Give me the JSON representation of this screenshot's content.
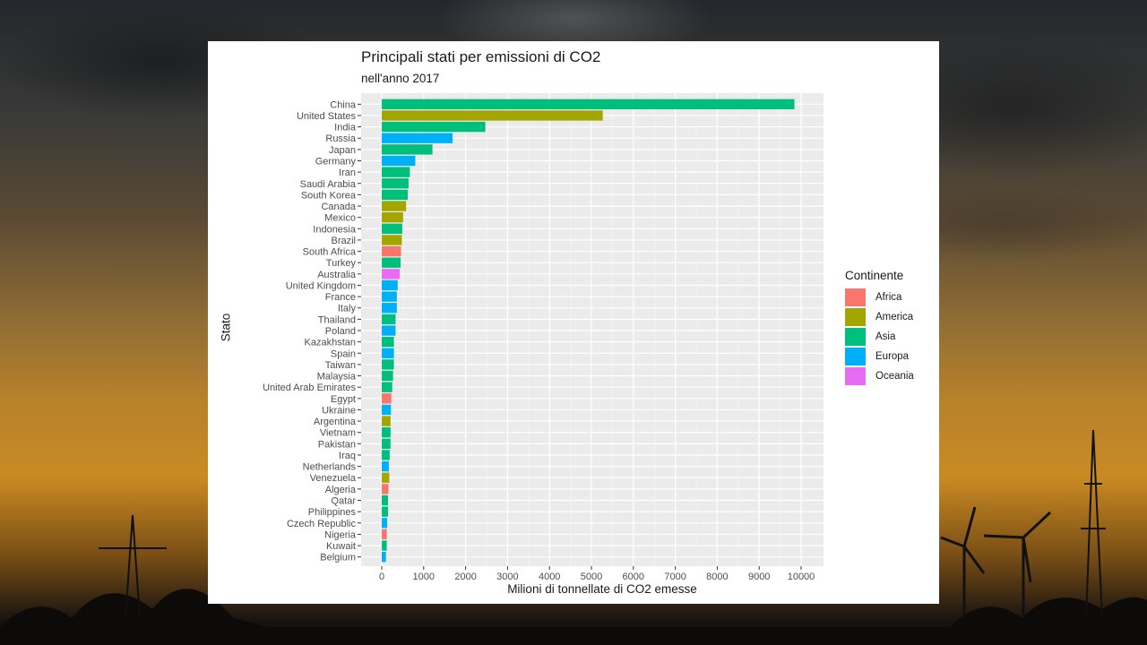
{
  "chart_data": {
    "type": "bar",
    "orientation": "horizontal",
    "title": "Principali stati per emissioni di CO2",
    "subtitle": "nell'anno 2017",
    "xlabel": "Milioni di tonnellate di CO2 emesse",
    "ylabel": "Stato",
    "xlim": [
      0,
      10300
    ],
    "x_ticks": [
      0,
      1000,
      2000,
      3000,
      4000,
      5000,
      6000,
      7000,
      8000,
      9000,
      10000
    ],
    "grid": true,
    "legend": {
      "title": "Continente",
      "position": "right"
    },
    "continent_colors": {
      "Africa": "#F8766D",
      "America": "#A3A500",
      "Asia": "#00BF7D",
      "Europa": "#00B0F6",
      "Oceania": "#E76BF3"
    },
    "continents": [
      "Africa",
      "America",
      "Asia",
      "Europa",
      "Oceania"
    ],
    "categories": [
      "China",
      "United States",
      "India",
      "Russia",
      "Japan",
      "Germany",
      "Iran",
      "Saudi Arabia",
      "South Korea",
      "Canada",
      "Mexico",
      "Indonesia",
      "Brazil",
      "South Africa",
      "Turkey",
      "Australia",
      "United Kingdom",
      "France",
      "Italy",
      "Thailand",
      "Poland",
      "Kazakhstan",
      "Spain",
      "Taiwan",
      "Malaysia",
      "United Arab Emirates",
      "Egypt",
      "Ukraine",
      "Argentina",
      "Vietnam",
      "Pakistan",
      "Iraq",
      "Netherlands",
      "Venezuela",
      "Algeria",
      "Qatar",
      "Philippines",
      "Czech Republic",
      "Nigeria",
      "Kuwait",
      "Belgium"
    ],
    "values": [
      9840,
      5270,
      2470,
      1690,
      1210,
      800,
      670,
      640,
      620,
      580,
      510,
      490,
      480,
      460,
      450,
      430,
      380,
      360,
      360,
      330,
      330,
      290,
      290,
      290,
      270,
      250,
      230,
      220,
      210,
      210,
      210,
      190,
      170,
      180,
      160,
      150,
      150,
      130,
      120,
      120,
      100
    ],
    "continent": [
      "Asia",
      "America",
      "Asia",
      "Europa",
      "Asia",
      "Europa",
      "Asia",
      "Asia",
      "Asia",
      "America",
      "America",
      "Asia",
      "America",
      "Africa",
      "Asia",
      "Oceania",
      "Europa",
      "Europa",
      "Europa",
      "Asia",
      "Europa",
      "Asia",
      "Europa",
      "Asia",
      "Asia",
      "Asia",
      "Africa",
      "Europa",
      "America",
      "Asia",
      "Asia",
      "Asia",
      "Europa",
      "America",
      "Africa",
      "Asia",
      "Asia",
      "Europa",
      "Africa",
      "Asia",
      "Europa"
    ]
  }
}
